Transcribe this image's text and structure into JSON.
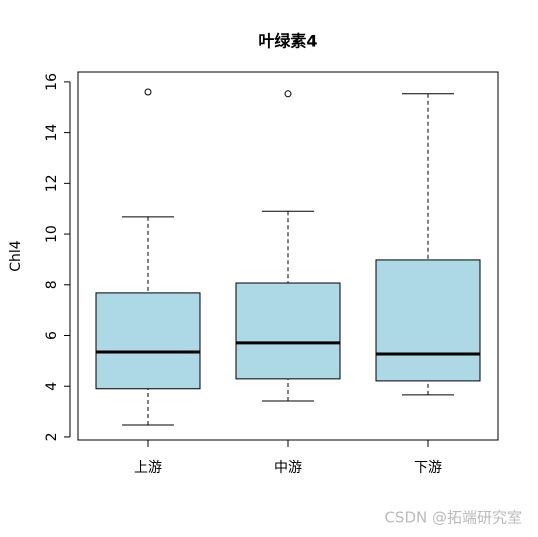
{
  "chart_data": {
    "type": "box",
    "title": "叶绿素4",
    "y_label": "Chl4",
    "categories": [
      "上游",
      "中游",
      "下游"
    ],
    "color": "#add8e6",
    "boxes": [
      {
        "low": 2.47,
        "q1": 3.9,
        "median": 5.35,
        "q3": 7.68,
        "high": 10.68,
        "outliers": [
          15.6
        ]
      },
      {
        "low": 3.42,
        "q1": 4.29,
        "median": 5.71,
        "q3": 8.07,
        "high": 10.9,
        "outliers": [
          15.53
        ]
      },
      {
        "low": 3.66,
        "q1": 4.21,
        "median": 5.27,
        "q3": 8.98,
        "high": 15.53,
        "outliers": []
      }
    ],
    "ylim": [
      1.88,
      16.39
    ],
    "yticks": [
      2,
      4,
      6,
      8,
      10,
      12,
      14,
      16
    ],
    "watermark": "CSDN @拓端研究室"
  }
}
